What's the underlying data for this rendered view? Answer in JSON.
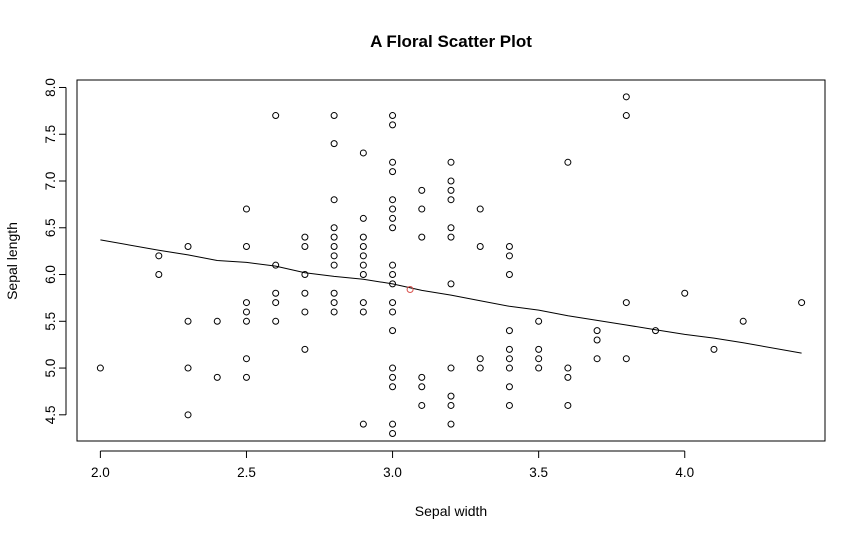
{
  "chart_data": {
    "type": "scatter",
    "title": "A Floral Scatter Plot",
    "xlabel": "Sepal width",
    "ylabel": "Sepal length",
    "xlim": [
      1.92,
      4.48
    ],
    "ylim": [
      4.22,
      8.08
    ],
    "x_ticks": [
      "2.0",
      "2.5",
      "3.0",
      "3.5",
      "4.0"
    ],
    "x_tick_values": [
      2.0,
      2.5,
      3.0,
      3.5,
      4.0
    ],
    "y_ticks": [
      "4.5",
      "5.0",
      "5.5",
      "6.0",
      "6.5",
      "7.0",
      "7.5",
      "8.0"
    ],
    "y_tick_values": [
      4.5,
      5.0,
      5.5,
      6.0,
      6.5,
      7.0,
      7.5,
      8.0
    ],
    "grid": false,
    "legend": "none",
    "point_color": "#000000",
    "highlight_color": "#d9534f",
    "line_color": "#000000",
    "points": [
      [
        2.0,
        5.0
      ],
      [
        2.2,
        6.2
      ],
      [
        2.2,
        6.0
      ],
      [
        2.3,
        6.3
      ],
      [
        2.3,
        5.5
      ],
      [
        2.3,
        5.0
      ],
      [
        2.3,
        4.5
      ],
      [
        2.4,
        5.5
      ],
      [
        2.4,
        4.9
      ],
      [
        2.5,
        6.7
      ],
      [
        2.5,
        6.3
      ],
      [
        2.5,
        5.7
      ],
      [
        2.5,
        5.6
      ],
      [
        2.5,
        5.5
      ],
      [
        2.5,
        5.1
      ],
      [
        2.5,
        4.9
      ],
      [
        2.6,
        7.7
      ],
      [
        2.6,
        6.1
      ],
      [
        2.6,
        5.8
      ],
      [
        2.6,
        5.7
      ],
      [
        2.6,
        5.5
      ],
      [
        2.7,
        6.4
      ],
      [
        2.7,
        6.3
      ],
      [
        2.7,
        6.0
      ],
      [
        2.7,
        5.8
      ],
      [
        2.7,
        5.6
      ],
      [
        2.7,
        5.2
      ],
      [
        2.8,
        7.7
      ],
      [
        2.8,
        7.4
      ],
      [
        2.8,
        6.8
      ],
      [
        2.8,
        6.5
      ],
      [
        2.8,
        6.4
      ],
      [
        2.8,
        6.3
      ],
      [
        2.8,
        6.2
      ],
      [
        2.8,
        6.1
      ],
      [
        2.8,
        5.8
      ],
      [
        2.8,
        5.7
      ],
      [
        2.8,
        5.6
      ],
      [
        2.9,
        7.3
      ],
      [
        2.9,
        6.6
      ],
      [
        2.9,
        6.4
      ],
      [
        2.9,
        6.3
      ],
      [
        2.9,
        6.2
      ],
      [
        2.9,
        6.1
      ],
      [
        2.9,
        6.0
      ],
      [
        2.9,
        5.7
      ],
      [
        2.9,
        5.6
      ],
      [
        2.9,
        4.4
      ],
      [
        3.0,
        7.7
      ],
      [
        3.0,
        7.6
      ],
      [
        3.0,
        7.2
      ],
      [
        3.0,
        7.1
      ],
      [
        3.0,
        6.8
      ],
      [
        3.0,
        6.7
      ],
      [
        3.0,
        6.6
      ],
      [
        3.0,
        6.5
      ],
      [
        3.0,
        6.1
      ],
      [
        3.0,
        6.0
      ],
      [
        3.0,
        5.9
      ],
      [
        3.0,
        5.7
      ],
      [
        3.0,
        5.6
      ],
      [
        3.0,
        5.4
      ],
      [
        3.0,
        5.0
      ],
      [
        3.0,
        4.9
      ],
      [
        3.0,
        4.8
      ],
      [
        3.0,
        4.4
      ],
      [
        3.0,
        4.3
      ],
      [
        3.1,
        6.9
      ],
      [
        3.1,
        6.7
      ],
      [
        3.1,
        6.4
      ],
      [
        3.1,
        4.9
      ],
      [
        3.1,
        4.8
      ],
      [
        3.1,
        4.6
      ],
      [
        3.2,
        7.2
      ],
      [
        3.2,
        7.0
      ],
      [
        3.2,
        6.9
      ],
      [
        3.2,
        6.8
      ],
      [
        3.2,
        6.5
      ],
      [
        3.2,
        6.4
      ],
      [
        3.2,
        5.9
      ],
      [
        3.2,
        5.0
      ],
      [
        3.2,
        4.7
      ],
      [
        3.2,
        4.6
      ],
      [
        3.2,
        4.4
      ],
      [
        3.3,
        6.7
      ],
      [
        3.3,
        6.3
      ],
      [
        3.3,
        5.1
      ],
      [
        3.3,
        5.0
      ],
      [
        3.4,
        6.3
      ],
      [
        3.4,
        6.2
      ],
      [
        3.4,
        6.0
      ],
      [
        3.4,
        5.4
      ],
      [
        3.4,
        5.2
      ],
      [
        3.4,
        5.1
      ],
      [
        3.4,
        5.0
      ],
      [
        3.4,
        4.8
      ],
      [
        3.4,
        4.6
      ],
      [
        3.5,
        5.5
      ],
      [
        3.5,
        5.2
      ],
      [
        3.5,
        5.1
      ],
      [
        3.5,
        5.0
      ],
      [
        3.6,
        7.2
      ],
      [
        3.6,
        5.0
      ],
      [
        3.6,
        4.9
      ],
      [
        3.6,
        4.6
      ],
      [
        3.7,
        5.4
      ],
      [
        3.7,
        5.3
      ],
      [
        3.7,
        5.1
      ],
      [
        3.8,
        7.9
      ],
      [
        3.8,
        7.7
      ],
      [
        3.8,
        5.7
      ],
      [
        3.8,
        5.1
      ],
      [
        3.9,
        5.4
      ],
      [
        4.0,
        5.8
      ],
      [
        4.1,
        5.2
      ],
      [
        4.2,
        5.5
      ],
      [
        4.4,
        5.7
      ]
    ],
    "highlight_point": [
      3.06,
      5.84
    ],
    "fit_line": [
      [
        2.0,
        6.37
      ],
      [
        2.2,
        6.26
      ],
      [
        2.3,
        6.21
      ],
      [
        2.4,
        6.15
      ],
      [
        2.5,
        6.13
      ],
      [
        2.6,
        6.09
      ],
      [
        2.7,
        6.02
      ],
      [
        2.8,
        5.98
      ],
      [
        2.9,
        5.95
      ],
      [
        3.0,
        5.9
      ],
      [
        3.1,
        5.83
      ],
      [
        3.2,
        5.78
      ],
      [
        3.3,
        5.72
      ],
      [
        3.4,
        5.66
      ],
      [
        3.5,
        5.62
      ],
      [
        3.6,
        5.56
      ],
      [
        3.7,
        5.51
      ],
      [
        3.8,
        5.46
      ],
      [
        3.9,
        5.41
      ],
      [
        4.0,
        5.36
      ],
      [
        4.1,
        5.32
      ],
      [
        4.2,
        5.27
      ],
      [
        4.4,
        5.16
      ]
    ]
  }
}
